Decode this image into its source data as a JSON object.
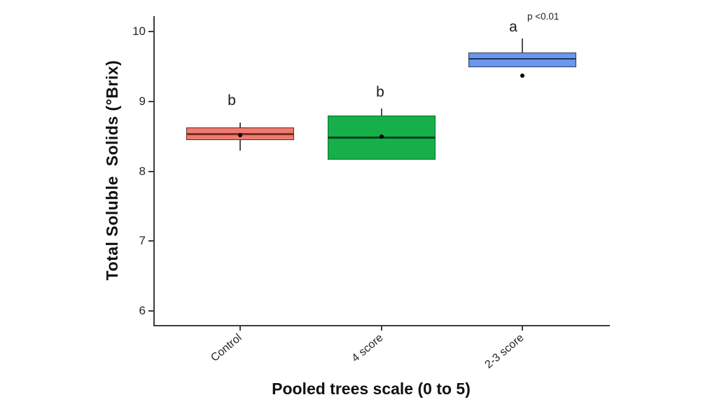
{
  "chart": {
    "ylabel": "Total Soluble  Solids (°Brix)",
    "xlabel": "Pooled trees scale (0 to 5)"
  },
  "chart_data": {
    "type": "boxplot",
    "title": "",
    "xlabel": "Pooled trees scale (0 to 5)",
    "ylabel": "Total Soluble Solids (°Brix)",
    "ylim": [
      5.8,
      10.2
    ],
    "yticks": [
      6,
      7,
      8,
      9,
      10
    ],
    "categories": [
      "Control",
      "4 score",
      "2-3 score"
    ],
    "grid": false,
    "legend": "none",
    "annotation": "p <0.01",
    "series": [
      {
        "name": "Control",
        "sig_letter": "b",
        "whisker_low": 8.3,
        "q1": 8.45,
        "median": 8.53,
        "q3": 8.63,
        "whisker_high": 8.7,
        "mean": 8.52,
        "outliers": [],
        "fill": "#EE7B70",
        "edge": "#642823",
        "median_color": "#7A2D26"
      },
      {
        "name": "4 score",
        "sig_letter": "b",
        "whisker_low": null,
        "q1": 8.17,
        "median": 8.48,
        "q3": 8.8,
        "whisker_high": 8.9,
        "mean": 8.5,
        "outliers": [],
        "fill": "#16AF4A",
        "edge": "#0E6B2D",
        "median_color": "#06441F"
      },
      {
        "name": "2-3 score",
        "sig_letter": "a",
        "whisker_low": null,
        "q1": 9.49,
        "median": 9.61,
        "q3": 9.7,
        "whisker_high": 9.9,
        "mean": null,
        "outliers": [
          9.37
        ],
        "fill": "#6B97ED",
        "edge": "#2A3C66",
        "median_color": "#1F3460",
        "annotation": "p <0.01"
      }
    ]
  }
}
